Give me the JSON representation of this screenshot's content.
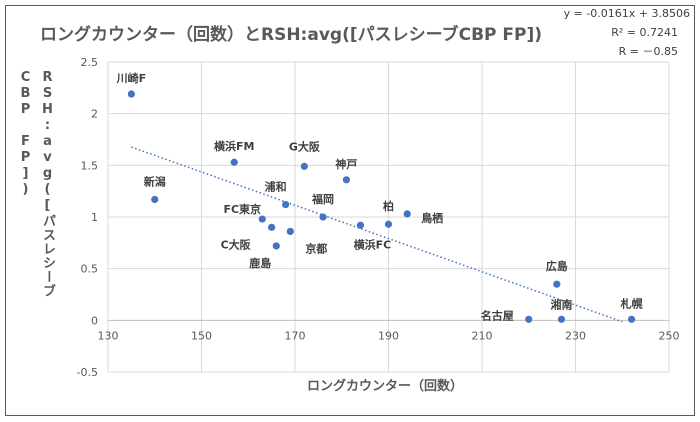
{
  "chart_data": {
    "type": "scatter",
    "title": "ロングカウンター（回数）とRSH:avg([パスレシーブCBP FP])",
    "xlabel": "ロングカウンター（回数）",
    "ylabel_lines": [
      "RSH:avg([パスレシーブ",
      "CBP FP])"
    ],
    "xlim": [
      130,
      250
    ],
    "ylim": [
      -0.5,
      2.5
    ],
    "xticks": [
      "130",
      "150",
      "170",
      "190",
      "210",
      "230",
      "250"
    ],
    "yticks": [
      "2.5",
      "2",
      "1.5",
      "1",
      "0.5",
      "0",
      "-0.5"
    ],
    "grid": true,
    "marker_color": "#4472C4",
    "points": [
      {
        "label": "川崎F",
        "x": 135,
        "y": 2.19
      },
      {
        "label": "新潟",
        "x": 140,
        "y": 1.17
      },
      {
        "label": "横浜FM",
        "x": 157,
        "y": 1.53
      },
      {
        "label": "G大阪",
        "x": 172,
        "y": 1.49
      },
      {
        "label": "神戸",
        "x": 181,
        "y": 1.36
      },
      {
        "label": "浦和",
        "x": 168,
        "y": 1.12
      },
      {
        "label": "福岡",
        "x": 176,
        "y": 1.0
      },
      {
        "label": "FC東京",
        "x": 163,
        "y": 0.98
      },
      {
        "label": "C大阪",
        "x": 165,
        "y": 0.9
      },
      {
        "label": "京都",
        "x": 169,
        "y": 0.86
      },
      {
        "label": "鹿島",
        "x": 166,
        "y": 0.72
      },
      {
        "label": "横浜FC",
        "x": 184,
        "y": 0.92
      },
      {
        "label": "柏",
        "x": 190,
        "y": 0.93
      },
      {
        "label": "鳥栖",
        "x": 194,
        "y": 1.03
      },
      {
        "label": "広島",
        "x": 226,
        "y": 0.35
      },
      {
        "label": "名古屋",
        "x": 220,
        "y": 0.01
      },
      {
        "label": "湘南",
        "x": 227,
        "y": 0.01
      },
      {
        "label": "札幌",
        "x": 242,
        "y": 0.01
      }
    ],
    "trendline": {
      "type": "linear",
      "slope": -0.0161,
      "intercept": 3.8506,
      "x_range": [
        135,
        240
      ],
      "color": "#4472C4"
    },
    "annotations": {
      "equation": "y = -0.0161x + 3.8506",
      "r2": "R² = 0.7241",
      "r": "R = －0.85"
    }
  }
}
